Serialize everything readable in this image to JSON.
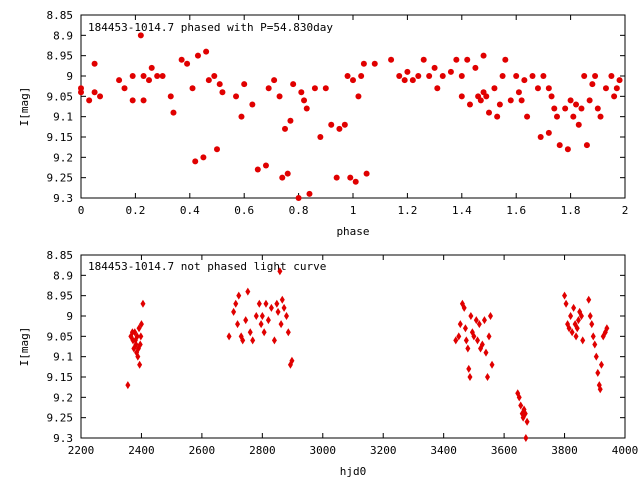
{
  "chart_data": [
    {
      "type": "scatter",
      "title": "184453-1014.7 phased with P=54.830day",
      "xlabel": "phase",
      "ylabel": "I[mag]",
      "xlim": [
        0,
        2
      ],
      "ylim": [
        8.85,
        9.3
      ],
      "y_inverted": true,
      "xticks": [
        "0",
        "0.2",
        "0.4",
        "0.6",
        "0.8",
        "1",
        "1.2",
        "1.4",
        "1.6",
        "1.8",
        "2"
      ],
      "yticks": [
        "8.85",
        "8.9",
        "8.95",
        "9",
        "9.05",
        "9.1",
        "9.15",
        "9.2",
        "9.25",
        "9.3"
      ],
      "marker": "filled-circle",
      "color": "#e00000",
      "points": [
        [
          0.0,
          9.03
        ],
        [
          0.0,
          9.04
        ],
        [
          0.03,
          9.06
        ],
        [
          0.05,
          9.04
        ],
        [
          0.05,
          8.97
        ],
        [
          0.07,
          9.05
        ],
        [
          0.14,
          9.01
        ],
        [
          0.16,
          9.03
        ],
        [
          0.19,
          9.0
        ],
        [
          0.19,
          9.06
        ],
        [
          0.22,
          8.9
        ],
        [
          0.23,
          9.0
        ],
        [
          0.23,
          9.06
        ],
        [
          0.25,
          9.01
        ],
        [
          0.26,
          8.98
        ],
        [
          0.28,
          9.0
        ],
        [
          0.3,
          9.0
        ],
        [
          0.33,
          9.05
        ],
        [
          0.34,
          9.09
        ],
        [
          0.37,
          8.96
        ],
        [
          0.39,
          8.97
        ],
        [
          0.41,
          9.03
        ],
        [
          0.42,
          9.21
        ],
        [
          0.43,
          8.95
        ],
        [
          0.45,
          9.2
        ],
        [
          0.46,
          8.94
        ],
        [
          0.47,
          9.01
        ],
        [
          0.49,
          9.0
        ],
        [
          0.5,
          9.18
        ],
        [
          0.51,
          9.02
        ],
        [
          0.52,
          9.04
        ],
        [
          0.57,
          9.05
        ],
        [
          0.59,
          9.1
        ],
        [
          0.6,
          9.02
        ],
        [
          0.63,
          9.07
        ],
        [
          0.65,
          9.23
        ],
        [
          0.68,
          9.22
        ],
        [
          0.69,
          9.03
        ],
        [
          0.71,
          9.01
        ],
        [
          0.73,
          9.05
        ],
        [
          0.74,
          9.25
        ],
        [
          0.75,
          9.13
        ],
        [
          0.76,
          9.24
        ],
        [
          0.77,
          9.11
        ],
        [
          0.78,
          9.02
        ],
        [
          0.8,
          9.3
        ],
        [
          0.81,
          9.04
        ],
        [
          0.82,
          9.06
        ],
        [
          0.83,
          9.08
        ],
        [
          0.84,
          9.29
        ],
        [
          0.86,
          9.03
        ],
        [
          0.88,
          9.15
        ],
        [
          0.9,
          9.03
        ],
        [
          0.92,
          9.12
        ],
        [
          0.94,
          9.25
        ],
        [
          0.95,
          9.13
        ],
        [
          0.97,
          9.12
        ],
        [
          0.98,
          9.0
        ],
        [
          0.99,
          9.25
        ],
        [
          1.0,
          9.01
        ],
        [
          1.01,
          9.26
        ],
        [
          1.02,
          9.05
        ],
        [
          1.03,
          9.0
        ],
        [
          1.04,
          8.97
        ],
        [
          1.05,
          9.24
        ],
        [
          1.08,
          8.97
        ],
        [
          1.14,
          8.96
        ],
        [
          1.17,
          9.0
        ],
        [
          1.19,
          9.01
        ],
        [
          1.2,
          8.99
        ],
        [
          1.22,
          9.01
        ],
        [
          1.24,
          9.0
        ],
        [
          1.26,
          8.96
        ],
        [
          1.28,
          9.0
        ],
        [
          1.3,
          8.98
        ],
        [
          1.31,
          9.03
        ],
        [
          1.33,
          9.0
        ],
        [
          1.36,
          8.99
        ],
        [
          1.38,
          8.96
        ],
        [
          1.4,
          9.05
        ],
        [
          1.4,
          9.0
        ],
        [
          1.42,
          8.96
        ],
        [
          1.43,
          9.07
        ],
        [
          1.45,
          8.98
        ],
        [
          1.46,
          9.05
        ],
        [
          1.47,
          9.06
        ],
        [
          1.48,
          9.04
        ],
        [
          1.48,
          8.95
        ],
        [
          1.49,
          9.05
        ],
        [
          1.5,
          9.09
        ],
        [
          1.52,
          9.03
        ],
        [
          1.53,
          9.1
        ],
        [
          1.54,
          9.07
        ],
        [
          1.55,
          9.0
        ],
        [
          1.56,
          8.96
        ],
        [
          1.58,
          9.06
        ],
        [
          1.6,
          9.0
        ],
        [
          1.61,
          9.04
        ],
        [
          1.62,
          9.06
        ],
        [
          1.63,
          9.01
        ],
        [
          1.64,
          9.1
        ],
        [
          1.66,
          9.0
        ],
        [
          1.68,
          9.03
        ],
        [
          1.69,
          9.15
        ],
        [
          1.7,
          9.0
        ],
        [
          1.72,
          9.14
        ],
        [
          1.72,
          9.03
        ],
        [
          1.73,
          9.05
        ],
        [
          1.74,
          9.08
        ],
        [
          1.75,
          9.1
        ],
        [
          1.76,
          9.17
        ],
        [
          1.78,
          9.08
        ],
        [
          1.79,
          9.18
        ],
        [
          1.8,
          9.06
        ],
        [
          1.81,
          9.1
        ],
        [
          1.82,
          9.07
        ],
        [
          1.83,
          9.12
        ],
        [
          1.84,
          9.08
        ],
        [
          1.85,
          9.0
        ],
        [
          1.86,
          9.17
        ],
        [
          1.87,
          9.06
        ],
        [
          1.88,
          9.02
        ],
        [
          1.89,
          9.0
        ],
        [
          1.9,
          9.08
        ],
        [
          1.91,
          9.1
        ],
        [
          1.93,
          9.03
        ],
        [
          1.95,
          9.0
        ],
        [
          1.96,
          9.05
        ],
        [
          1.97,
          9.03
        ],
        [
          1.98,
          9.01
        ]
      ]
    },
    {
      "type": "scatter",
      "title": "184453-1014.7 not phased light curve",
      "xlabel": "hjd0",
      "ylabel": "I[mag]",
      "xlim": [
        2200,
        4000
      ],
      "ylim": [
        8.85,
        9.3
      ],
      "y_inverted": true,
      "xticks": [
        "2200",
        "2400",
        "2600",
        "2800",
        "3000",
        "3200",
        "3400",
        "3600",
        "3800",
        "4000"
      ],
      "yticks": [
        "8.85",
        "8.9",
        "8.95",
        "9",
        "9.05",
        "9.1",
        "9.15",
        "9.2",
        "9.25",
        "9.3"
      ],
      "marker": "diamond",
      "color": "#e00000",
      "points": [
        [
          2355,
          9.17
        ],
        [
          2365,
          9.05
        ],
        [
          2370,
          9.04
        ],
        [
          2372,
          9.06
        ],
        [
          2375,
          9.08
        ],
        [
          2378,
          9.04
        ],
        [
          2380,
          9.06
        ],
        [
          2382,
          9.07
        ],
        [
          2384,
          9.09
        ],
        [
          2386,
          9.05
        ],
        [
          2388,
          9.1
        ],
        [
          2390,
          9.08
        ],
        [
          2392,
          9.03
        ],
        [
          2394,
          9.12
        ],
        [
          2396,
          9.07
        ],
        [
          2398,
          9.05
        ],
        [
          2400,
          9.02
        ],
        [
          2405,
          8.97
        ],
        [
          2690,
          9.05
        ],
        [
          2705,
          8.99
        ],
        [
          2712,
          8.97
        ],
        [
          2718,
          9.02
        ],
        [
          2722,
          8.95
        ],
        [
          2730,
          9.05
        ],
        [
          2735,
          9.06
        ],
        [
          2745,
          9.01
        ],
        [
          2752,
          8.94
        ],
        [
          2760,
          9.04
        ],
        [
          2768,
          9.06
        ],
        [
          2780,
          9.0
        ],
        [
          2790,
          8.97
        ],
        [
          2796,
          9.02
        ],
        [
          2800,
          9.0
        ],
        [
          2806,
          9.04
        ],
        [
          2812,
          8.97
        ],
        [
          2820,
          9.01
        ],
        [
          2830,
          8.98
        ],
        [
          2840,
          9.06
        ],
        [
          2848,
          8.97
        ],
        [
          2852,
          8.99
        ],
        [
          2858,
          8.89
        ],
        [
          2862,
          9.02
        ],
        [
          2866,
          8.96
        ],
        [
          2872,
          8.98
        ],
        [
          2880,
          9.0
        ],
        [
          2886,
          9.04
        ],
        [
          2893,
          9.12
        ],
        [
          2898,
          9.11
        ],
        [
          3440,
          9.06
        ],
        [
          3450,
          9.05
        ],
        [
          3455,
          9.02
        ],
        [
          3462,
          8.97
        ],
        [
          3468,
          8.98
        ],
        [
          3472,
          9.03
        ],
        [
          3475,
          9.06
        ],
        [
          3480,
          9.08
        ],
        [
          3483,
          9.13
        ],
        [
          3487,
          9.15
        ],
        [
          3490,
          9.0
        ],
        [
          3495,
          9.04
        ],
        [
          3500,
          9.05
        ],
        [
          3508,
          9.01
        ],
        [
          3512,
          9.06
        ],
        [
          3518,
          9.02
        ],
        [
          3522,
          9.08
        ],
        [
          3528,
          9.07
        ],
        [
          3535,
          9.01
        ],
        [
          3540,
          9.09
        ],
        [
          3545,
          9.15
        ],
        [
          3550,
          9.05
        ],
        [
          3555,
          9.0
        ],
        [
          3560,
          9.12
        ],
        [
          3645,
          9.19
        ],
        [
          3650,
          9.2
        ],
        [
          3655,
          9.22
        ],
        [
          3660,
          9.24
        ],
        [
          3663,
          9.25
        ],
        [
          3666,
          9.23
        ],
        [
          3670,
          9.24
        ],
        [
          3672,
          9.3
        ],
        [
          3676,
          9.26
        ],
        [
          3800,
          8.95
        ],
        [
          3805,
          8.97
        ],
        [
          3810,
          9.02
        ],
        [
          3815,
          9.03
        ],
        [
          3820,
          9.0
        ],
        [
          3825,
          9.04
        ],
        [
          3830,
          8.98
        ],
        [
          3835,
          9.02
        ],
        [
          3838,
          9.05
        ],
        [
          3842,
          9.03
        ],
        [
          3846,
          9.01
        ],
        [
          3850,
          8.99
        ],
        [
          3856,
          9.0
        ],
        [
          3860,
          9.06
        ],
        [
          3880,
          8.96
        ],
        [
          3885,
          9.0
        ],
        [
          3890,
          9.02
        ],
        [
          3895,
          9.05
        ],
        [
          3900,
          9.07
        ],
        [
          3905,
          9.1
        ],
        [
          3910,
          9.14
        ],
        [
          3915,
          9.17
        ],
        [
          3918,
          9.18
        ],
        [
          3922,
          9.12
        ],
        [
          3928,
          9.05
        ],
        [
          3935,
          9.04
        ],
        [
          3940,
          9.03
        ]
      ]
    }
  ]
}
